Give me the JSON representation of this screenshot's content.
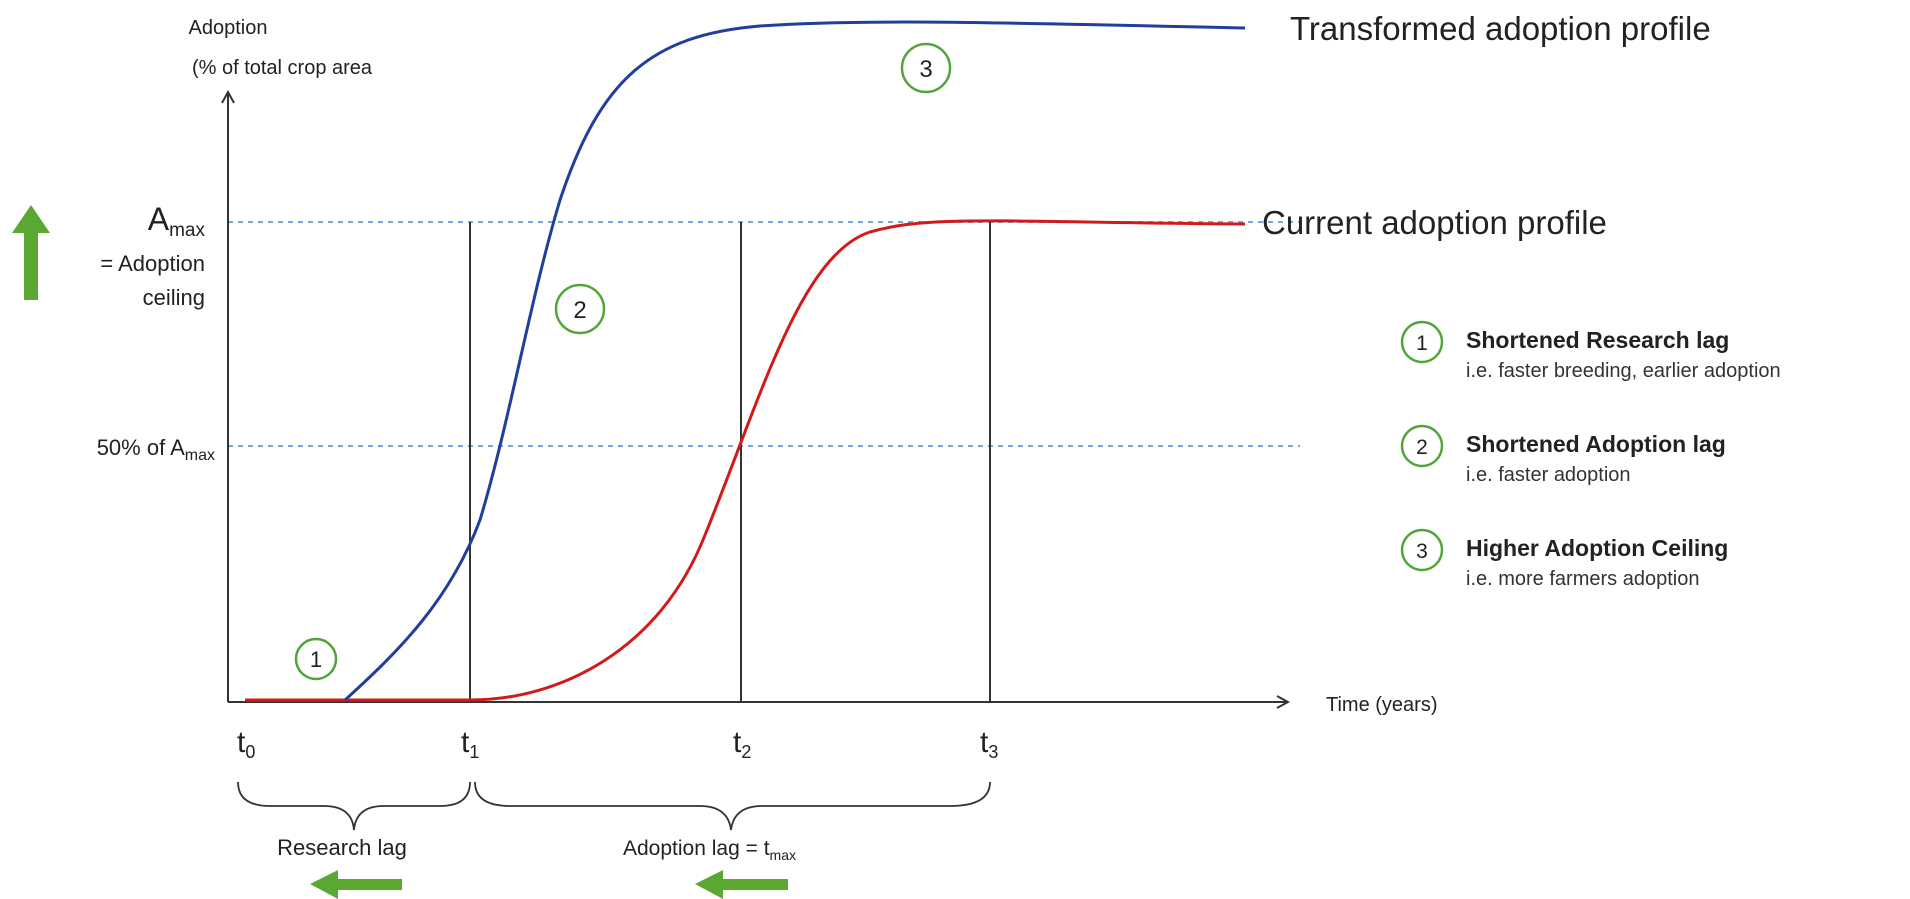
{
  "y_axis": {
    "title_line1": "Adoption",
    "title_line2": "(% of total crop area"
  },
  "x_axis": {
    "title": "Time (years)"
  },
  "amax_label": {
    "main": "A",
    "sub": "max"
  },
  "amax_desc": {
    "line1": "= Adoption",
    "line2": "ceiling"
  },
  "half_amax_label": {
    "prefix": "50% of A",
    "sub": "max"
  },
  "time_ticks": [
    {
      "main": "t",
      "sub": "0"
    },
    {
      "main": "t",
      "sub": "1"
    },
    {
      "main": "t",
      "sub": "2"
    },
    {
      "main": "t",
      "sub": "3"
    }
  ],
  "lags": {
    "research": "Research  lag",
    "adoption_main": "Adoption lag = t",
    "adoption_sub": "max"
  },
  "curves": {
    "transformed": {
      "label": "Transformed adoption profile",
      "color": "#1f3f99"
    },
    "current": {
      "label": "Current adoption profile",
      "color": "#d11a1a"
    }
  },
  "markers": {
    "one": "1",
    "two": "2",
    "three": "3"
  },
  "legend": [
    {
      "num": "1",
      "title": "Shortened Research lag",
      "desc": "i.e. faster breeding, earlier adoption"
    },
    {
      "num": "2",
      "title": "Shortened Adoption lag",
      "desc": "i.e. faster adoption"
    },
    {
      "num": "3",
      "title": "Higher Adoption Ceiling",
      "desc": "i.e. more farmers adoption"
    }
  ],
  "colors": {
    "accent_green": "#5aa832",
    "circle_green": "#53a53a",
    "guide_blue": "#7aa6d6",
    "axis": "#333333"
  }
}
